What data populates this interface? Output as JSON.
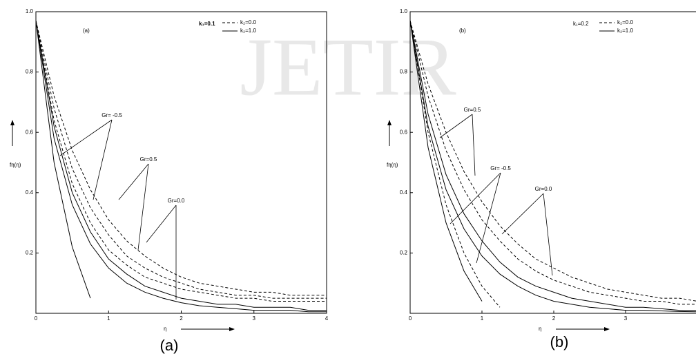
{
  "watermark": "JETIR",
  "chart_data": [
    {
      "type": "line",
      "panel_label": "(a)",
      "inner_label": "(a)",
      "parameter": "k₁=0.1",
      "xlabel": "η",
      "ylabel": "fη(η)",
      "xlim": [
        0,
        4
      ],
      "ylim": [
        0,
        1
      ],
      "xticks": [
        0,
        1,
        2,
        3,
        4
      ],
      "yticks": [
        0.2,
        0.4,
        0.6,
        0.8,
        {
          "value": 1,
          "label": "1.0"
        }
      ],
      "legend": [
        {
          "label": "k₂=0.0",
          "dashed": true
        },
        {
          "label": "k₂=1.0",
          "dashed": false
        }
      ],
      "annotations": [
        "Gr= -0.5",
        "Gr=0.5",
        "Gr=0.0"
      ],
      "x": [
        0,
        0.25,
        0.5,
        0.75,
        1,
        1.25,
        1.5,
        1.75,
        2,
        2.25,
        2.5,
        2.75,
        3,
        3.25,
        3.5,
        3.75,
        4
      ],
      "series": [
        {
          "dashed": true,
          "color": "#000000",
          "values": [
            0.97,
            0.72,
            0.54,
            0.41,
            0.31,
            0.24,
            0.19,
            0.15,
            0.12,
            0.1,
            0.09,
            0.08,
            0.07,
            0.07,
            0.06,
            0.06,
            0.06
          ]
        },
        {
          "dashed": true,
          "color": "#000000",
          "values": [
            0.97,
            0.68,
            0.48,
            0.35,
            0.26,
            0.19,
            0.15,
            0.12,
            0.1,
            0.08,
            0.07,
            0.06,
            0.06,
            0.05,
            0.05,
            0.05,
            0.05
          ]
        },
        {
          "dashed": true,
          "color": "#000000",
          "values": [
            0.97,
            0.64,
            0.43,
            0.3,
            0.21,
            0.16,
            0.12,
            0.1,
            0.08,
            0.07,
            0.06,
            0.05,
            0.05,
            0.04,
            0.04,
            0.04,
            0.04
          ]
        },
        {
          "dashed": false,
          "color": "#000000",
          "values": [
            0.97,
            0.62,
            0.4,
            0.27,
            0.18,
            0.13,
            0.09,
            0.07,
            0.05,
            0.04,
            0.03,
            0.03,
            0.02,
            0.02,
            0.02,
            0.01,
            0.01
          ]
        },
        {
          "dashed": false,
          "color": "#000000",
          "values": [
            0.97,
            0.58,
            0.36,
            0.23,
            0.15,
            0.1,
            0.07,
            0.05,
            0.035,
            0.025,
            0.02,
            0.015,
            0.01,
            0.01,
            0.01,
            0.005,
            0.005
          ]
        },
        {
          "dashed": false,
          "color": "#000000",
          "values": [
            0.97,
            0.5,
            0.22,
            0.05,
            null,
            null,
            null,
            null,
            null,
            null,
            null,
            null,
            null,
            null,
            null,
            null,
            null
          ]
        }
      ]
    },
    {
      "type": "line",
      "panel_label": "(b)",
      "inner_label": "(b)",
      "parameter": "k₁=0.2",
      "xlabel": "η",
      "ylabel": "fη(η)",
      "xlim": [
        0,
        4
      ],
      "ylim": [
        0,
        1
      ],
      "xticks": [
        0,
        1,
        2,
        3
      ],
      "yticks": [
        0.2,
        0.4,
        0.6,
        0.8,
        {
          "value": 1,
          "label": "1.0"
        }
      ],
      "legend": [
        {
          "label": "k₂=0.0",
          "dashed": true
        },
        {
          "label": "k₂=1.0",
          "dashed": false
        }
      ],
      "annotations": [
        "Gr=0.5",
        "Gr= -0.5",
        "Gr=0.0"
      ],
      "x": [
        0,
        0.25,
        0.5,
        0.75,
        1,
        1.25,
        1.5,
        1.75,
        2,
        2.25,
        2.5,
        2.75,
        3,
        3.25,
        3.5,
        3.75,
        4
      ],
      "series": [
        {
          "dashed": true,
          "color": "#000000",
          "values": [
            0.97,
            0.76,
            0.6,
            0.47,
            0.37,
            0.29,
            0.23,
            0.18,
            0.15,
            0.12,
            0.1,
            0.08,
            0.07,
            0.06,
            0.05,
            0.05,
            0.04
          ]
        },
        {
          "dashed": true,
          "color": "#000000",
          "values": [
            0.97,
            0.72,
            0.54,
            0.41,
            0.31,
            0.24,
            0.18,
            0.14,
            0.11,
            0.09,
            0.07,
            0.06,
            0.05,
            0.04,
            0.04,
            0.03,
            0.03
          ]
        },
        {
          "dashed": true,
          "color": "#000000",
          "values": [
            0.97,
            0.6,
            0.36,
            0.2,
            0.09,
            0.02,
            null,
            null,
            null,
            null,
            null,
            null,
            null,
            null,
            null,
            null,
            null
          ]
        },
        {
          "dashed": false,
          "color": "#000000",
          "values": [
            0.97,
            0.66,
            0.46,
            0.33,
            0.24,
            0.17,
            0.12,
            0.09,
            0.07,
            0.05,
            0.04,
            0.03,
            0.02,
            0.02,
            0.015,
            0.01,
            0.01
          ]
        },
        {
          "dashed": false,
          "color": "#000000",
          "values": [
            0.97,
            0.62,
            0.41,
            0.28,
            0.19,
            0.13,
            0.09,
            0.06,
            0.04,
            0.03,
            0.02,
            0.015,
            0.01,
            0.01,
            0.008,
            0.006,
            0.005
          ]
        },
        {
          "dashed": false,
          "color": "#000000",
          "values": [
            0.97,
            0.55,
            0.3,
            0.14,
            0.04,
            null,
            null,
            null,
            null,
            null,
            null,
            null,
            null,
            null,
            null,
            null,
            null
          ]
        }
      ]
    }
  ]
}
